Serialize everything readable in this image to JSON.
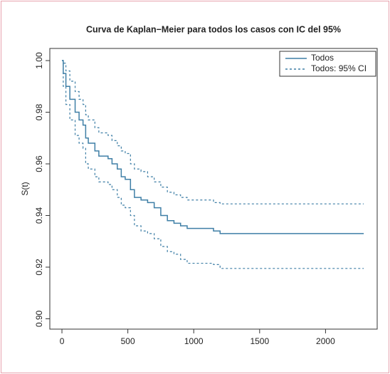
{
  "chart_data": {
    "type": "step",
    "title": "Curva de Kaplan−Meier para todos los casos con IC del 95%",
    "ylabel": "S(t)",
    "x": [
      0,
      10,
      30,
      60,
      100,
      130,
      160,
      180,
      200,
      250,
      280,
      350,
      380,
      420,
      450,
      480,
      520,
      550,
      600,
      650,
      700,
      750,
      800,
      850,
      900,
      950,
      1150,
      1200,
      2290
    ],
    "series": [
      {
        "name": "Todos",
        "color": "#3f7fa6",
        "dash": false,
        "values": [
          1.0,
          0.995,
          0.99,
          0.985,
          0.98,
          0.977,
          0.975,
          0.97,
          0.968,
          0.965,
          0.963,
          0.962,
          0.96,
          0.958,
          0.955,
          0.954,
          0.95,
          0.947,
          0.946,
          0.945,
          0.943,
          0.94,
          0.938,
          0.937,
          0.936,
          0.935,
          0.934,
          0.933,
          0.933
        ]
      },
      {
        "name": "Todos: 95% CI",
        "color": "#3f7fa6",
        "dash": true,
        "upper": [
          1.0,
          0.999,
          0.996,
          0.992,
          0.988,
          0.985,
          0.983,
          0.979,
          0.977,
          0.974,
          0.972,
          0.971,
          0.969,
          0.967,
          0.965,
          0.964,
          0.96,
          0.958,
          0.957,
          0.955,
          0.953,
          0.951,
          0.949,
          0.948,
          0.947,
          0.946,
          0.945,
          0.9445,
          0.9445
        ],
        "lower": [
          1.0,
          0.99,
          0.983,
          0.977,
          0.971,
          0.968,
          0.966,
          0.96,
          0.958,
          0.955,
          0.953,
          0.952,
          0.95,
          0.947,
          0.944,
          0.943,
          0.94,
          0.936,
          0.934,
          0.933,
          0.931,
          0.928,
          0.926,
          0.925,
          0.923,
          0.9215,
          0.921,
          0.9195,
          0.9195
        ]
      }
    ],
    "xlim": [
      -92,
      2392
    ],
    "ylim": [
      0.896,
      1.0047
    ],
    "xticks": [
      0,
      500,
      1000,
      1500,
      2000
    ],
    "yticks": [
      {
        "value": 0.9,
        "label": "0.90"
      },
      {
        "value": 0.92,
        "label": "0.92"
      },
      {
        "value": 0.94,
        "label": "0.94"
      },
      {
        "value": 0.96,
        "label": "0.96"
      },
      {
        "value": 0.98,
        "label": "0.98"
      },
      {
        "value": 1,
        "label": "1.00"
      }
    ],
    "legend": "top-right"
  }
}
